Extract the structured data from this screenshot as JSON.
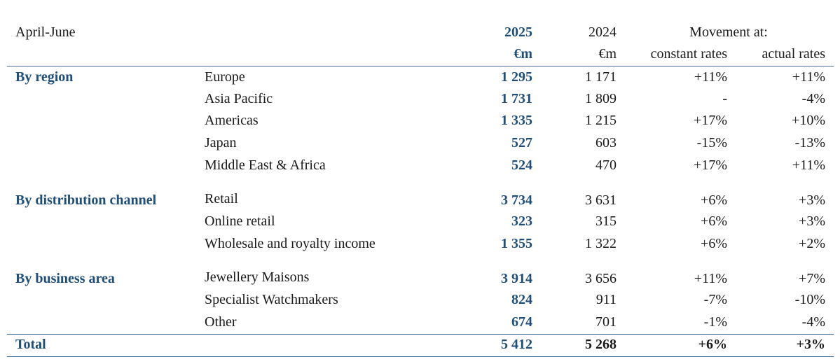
{
  "header": {
    "period": "April-June",
    "col_2025": "2025",
    "col_2024": "2024",
    "movement": "Movement at:",
    "unit_2025": "€m",
    "unit_2024": "€m",
    "constant_rates": "constant rates",
    "actual_rates": "actual rates"
  },
  "sections": [
    {
      "title": "By region",
      "rows": [
        {
          "label": "Europe",
          "v2025": "1 295",
          "v2024": "1 171",
          "constant": "+11%",
          "actual": "+11%"
        },
        {
          "label": "Asia Pacific",
          "v2025": "1 731",
          "v2024": "1 809",
          "constant": "-",
          "actual": "-4%"
        },
        {
          "label": "Americas",
          "v2025": "1 335",
          "v2024": "1 215",
          "constant": "+17%",
          "actual": "+10%"
        },
        {
          "label": "Japan",
          "v2025": "527",
          "v2024": "603",
          "constant": "-15%",
          "actual": "-13%"
        },
        {
          "label": "Middle East & Africa",
          "v2025": "524",
          "v2024": "470",
          "constant": "+17%",
          "actual": "+11%"
        }
      ]
    },
    {
      "title": "By distribution channel",
      "rows": [
        {
          "label": "Retail",
          "v2025": "3 734",
          "v2024": "3 631",
          "constant": "+6%",
          "actual": "+3%"
        },
        {
          "label": "Online retail",
          "v2025": "323",
          "v2024": "315",
          "constant": "+6%",
          "actual": "+3%"
        },
        {
          "label": "Wholesale and royalty income",
          "v2025": "1 355",
          "v2024": "1 322",
          "constant": "+6%",
          "actual": "+2%"
        }
      ]
    },
    {
      "title": "By business area",
      "rows": [
        {
          "label": "Jewellery Maisons",
          "v2025": "3 914",
          "v2024": "3 656",
          "constant": "+11%",
          "actual": "+7%"
        },
        {
          "label": "Specialist Watchmakers",
          "v2025": "824",
          "v2024": "911",
          "constant": "-7%",
          "actual": "-10%"
        },
        {
          "label": "Other",
          "v2025": "674",
          "v2024": "701",
          "constant": "-1%",
          "actual": "-4%"
        }
      ]
    }
  ],
  "total": {
    "label": "Total",
    "v2025": "5 412",
    "v2024": "5 268",
    "constant": "+6%",
    "actual": "+3%"
  },
  "colors": {
    "accent": "#1f4e79",
    "rule": "#4a6f93"
  }
}
